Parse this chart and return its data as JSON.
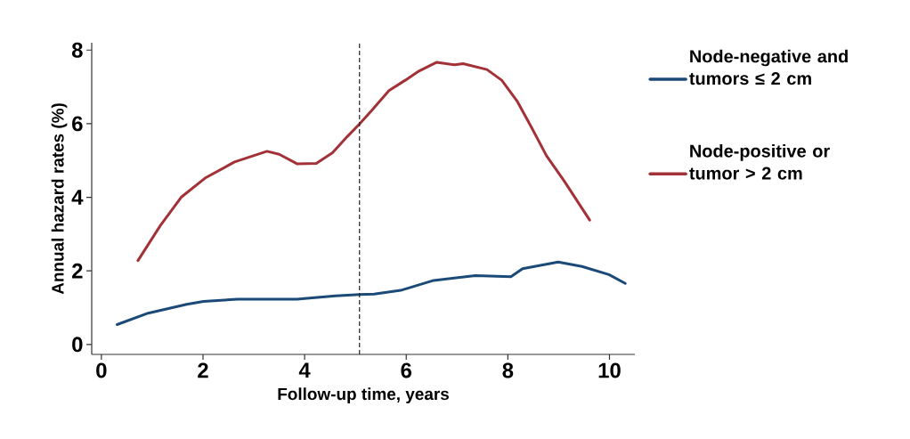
{
  "chart_data": {
    "type": "line",
    "xlabel": "Follow-up time, years",
    "ylabel": "Annual hazard rates (%)",
    "xlim": [
      -0.19,
      10.5
    ],
    "ylim": [
      -0.27,
      8.2
    ],
    "xticks": [
      0,
      2,
      4,
      6,
      8,
      10
    ],
    "yticks": [
      0,
      2,
      4,
      6,
      8
    ],
    "grid": false,
    "legend": "right",
    "line_style": "solid",
    "marker": "none",
    "ref_lines": [
      {
        "axis": "x",
        "value": 5.08,
        "color": "#222222",
        "line_style": "dashed"
      }
    ],
    "series": [
      {
        "name": "Node-negative and tumors ≤ 2 cm",
        "color": "#1b4a78",
        "x": [
          0.31,
          0.92,
          1.68,
          2.01,
          2.68,
          3.85,
          4.2,
          4.61,
          5.08,
          5.37,
          5.89,
          6.54,
          7.36,
          8.06,
          8.29,
          8.99,
          9.46,
          9.99,
          10.31
        ],
        "values": [
          0.54,
          0.85,
          1.09,
          1.17,
          1.23,
          1.23,
          1.27,
          1.32,
          1.36,
          1.37,
          1.47,
          1.74,
          1.87,
          1.84,
          2.06,
          2.24,
          2.12,
          1.9,
          1.66
        ]
      },
      {
        "name": "Node-positive or tumor > 2 cm",
        "color": "#a23237",
        "x": [
          0.72,
          1.16,
          1.57,
          2.04,
          2.62,
          3.26,
          3.5,
          3.85,
          4.23,
          4.55,
          4.84,
          5.08,
          5.31,
          5.66,
          5.98,
          6.25,
          6.6,
          6.95,
          7.12,
          7.59,
          7.88,
          8.18,
          8.47,
          8.76,
          9.11,
          9.61
        ],
        "values": [
          2.28,
          3.23,
          4.0,
          4.52,
          4.96,
          5.25,
          5.17,
          4.91,
          4.92,
          5.21,
          5.65,
          5.99,
          6.34,
          6.9,
          7.18,
          7.43,
          7.67,
          7.6,
          7.63,
          7.47,
          7.18,
          6.62,
          5.89,
          5.13,
          4.44,
          3.38
        ]
      }
    ]
  }
}
